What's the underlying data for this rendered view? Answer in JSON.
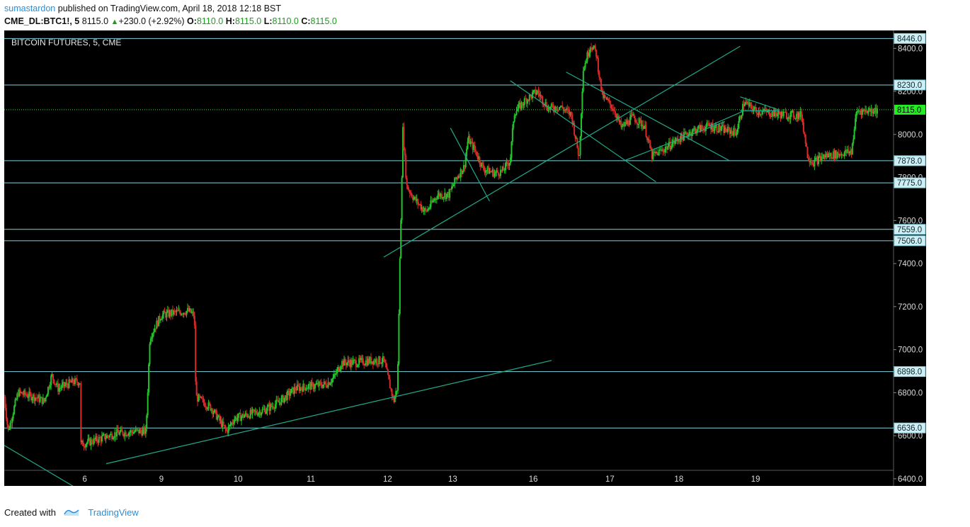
{
  "header": {
    "author": "sumastardon",
    "published": "published on TradingView.com, April 18, 2018 12:18 BST",
    "symbol": "CME_DL:BTC1!, 5",
    "last": "8115.0",
    "change": "+230.0 (+2.92%)",
    "o_label": "O:",
    "o_value": "8110.0",
    "h_label": "H:",
    "h_value": "8115.0",
    "l_label": "L:",
    "l_value": "8110.0",
    "c_label": "C:",
    "c_value": "8115.0"
  },
  "footer": {
    "created_with": "Created with",
    "brand": "TradingView"
  },
  "colors": {
    "background": "#000000",
    "candle_up": "#22c42b",
    "candle_down": "#d92a2a",
    "level_line": "#7fd3e0",
    "trend_line": "#1fa98a",
    "last_price": "#33dd33"
  },
  "chart_data": {
    "type": "candlestick",
    "title": "BITCOIN FUTURES, 5, CME",
    "ylim": [
      6370,
      8480
    ],
    "y_ticks": [
      "6400.0",
      "6600.0",
      "6800.0",
      "7000.0",
      "7200.0",
      "7400.0",
      "7600.0",
      "7800.0",
      "8000.0",
      "8200.0",
      "8400.0"
    ],
    "x_ticks": [
      "6",
      "9",
      "10",
      "11",
      "12",
      "13",
      "16",
      "17",
      "18",
      "19"
    ],
    "horizontal_levels": [
      {
        "value": 8446.0,
        "label": "8446.0"
      },
      {
        "value": 8230.0,
        "label": "8230.0"
      },
      {
        "value": 7878.0,
        "label": "7878.0"
      },
      {
        "value": 7775.0,
        "label": "7775.0"
      },
      {
        "value": 7559.0,
        "label": "7559.0"
      },
      {
        "value": 7506.0,
        "label": "7506.0"
      },
      {
        "value": 6898.0,
        "label": "6898.0"
      },
      {
        "value": 6636.0,
        "label": "6636.0"
      }
    ],
    "last_price": {
      "value": 8115.0,
      "label": "8115.0"
    },
    "price_path": [
      {
        "t": 0.0,
        "p": 6780
      },
      {
        "t": 0.05,
        "p": 6620
      },
      {
        "t": 0.18,
        "p": 6800
      },
      {
        "t": 0.4,
        "p": 6780
      },
      {
        "t": 0.52,
        "p": 6760
      },
      {
        "t": 0.62,
        "p": 6880
      },
      {
        "t": 0.7,
        "p": 6820
      },
      {
        "t": 0.9,
        "p": 6850
      },
      {
        "t": 1.0,
        "p": 6850
      },
      {
        "t": 1.001,
        "p": 6560
      },
      {
        "t": 1.2,
        "p": 6580
      },
      {
        "t": 1.45,
        "p": 6610
      },
      {
        "t": 1.7,
        "p": 6620
      },
      {
        "t": 1.85,
        "p": 6620
      },
      {
        "t": 1.9,
        "p": 7060
      },
      {
        "t": 2.05,
        "p": 7160
      },
      {
        "t": 2.2,
        "p": 7170
      },
      {
        "t": 2.4,
        "p": 7180
      },
      {
        "t": 2.48,
        "p": 7160
      },
      {
        "t": 2.5,
        "p": 6780
      },
      {
        "t": 2.7,
        "p": 6730
      },
      {
        "t": 2.9,
        "p": 6620
      },
      {
        "t": 3.0,
        "p": 6680
      },
      {
        "t": 3.2,
        "p": 6700
      },
      {
        "t": 3.4,
        "p": 6720
      },
      {
        "t": 3.6,
        "p": 6760
      },
      {
        "t": 3.8,
        "p": 6820
      },
      {
        "t": 4.0,
        "p": 6830
      },
      {
        "t": 4.2,
        "p": 6840
      },
      {
        "t": 4.3,
        "p": 6870
      },
      {
        "t": 4.4,
        "p": 6940
      },
      {
        "t": 4.6,
        "p": 6940
      },
      {
        "t": 4.8,
        "p": 6950
      },
      {
        "t": 4.95,
        "p": 6950
      },
      {
        "t": 5.08,
        "p": 6760
      },
      {
        "t": 5.13,
        "p": 6830
      },
      {
        "t": 5.16,
        "p": 7400
      },
      {
        "t": 5.2,
        "p": 8020
      },
      {
        "t": 5.25,
        "p": 7760
      },
      {
        "t": 5.35,
        "p": 7700
      },
      {
        "t": 5.5,
        "p": 7640
      },
      {
        "t": 5.65,
        "p": 7720
      },
      {
        "t": 5.8,
        "p": 7720
      },
      {
        "t": 5.9,
        "p": 7800
      },
      {
        "t": 6.0,
        "p": 7850
      },
      {
        "t": 6.05,
        "p": 7980
      },
      {
        "t": 6.15,
        "p": 7920
      },
      {
        "t": 6.25,
        "p": 7840
      },
      {
        "t": 6.4,
        "p": 7820
      },
      {
        "t": 6.5,
        "p": 7830
      },
      {
        "t": 6.6,
        "p": 7880
      },
      {
        "t": 6.65,
        "p": 8100
      },
      {
        "t": 6.8,
        "p": 8160
      },
      {
        "t": 6.95,
        "p": 8200
      },
      {
        "t": 7.1,
        "p": 8120
      },
      {
        "t": 7.25,
        "p": 8130
      },
      {
        "t": 7.4,
        "p": 8090
      },
      {
        "t": 7.5,
        "p": 7890
      },
      {
        "t": 7.55,
        "p": 8300
      },
      {
        "t": 7.65,
        "p": 8420
      },
      {
        "t": 7.72,
        "p": 8380
      },
      {
        "t": 7.8,
        "p": 8180
      },
      {
        "t": 7.95,
        "p": 8120
      },
      {
        "t": 8.05,
        "p": 8030
      },
      {
        "t": 8.2,
        "p": 8080
      },
      {
        "t": 8.35,
        "p": 8040
      },
      {
        "t": 8.45,
        "p": 7900
      },
      {
        "t": 8.6,
        "p": 7930
      },
      {
        "t": 8.8,
        "p": 7980
      },
      {
        "t": 9.0,
        "p": 8020
      },
      {
        "t": 9.2,
        "p": 8040
      },
      {
        "t": 9.4,
        "p": 8020
      },
      {
        "t": 9.55,
        "p": 8010
      },
      {
        "t": 9.65,
        "p": 8150
      },
      {
        "t": 9.8,
        "p": 8110
      },
      {
        "t": 10.0,
        "p": 8100
      },
      {
        "t": 10.2,
        "p": 8090
      },
      {
        "t": 10.4,
        "p": 8090
      },
      {
        "t": 10.48,
        "p": 7900
      },
      {
        "t": 10.55,
        "p": 7870
      },
      {
        "t": 10.7,
        "p": 7900
      },
      {
        "t": 10.9,
        "p": 7910
      },
      {
        "t": 11.05,
        "p": 7920
      },
      {
        "t": 11.12,
        "p": 8110
      },
      {
        "t": 11.2,
        "p": 8110
      },
      {
        "t": 11.4,
        "p": 8115
      }
    ],
    "trend_lines": [
      {
        "t1": 0.0,
        "p1": 6555,
        "t2": 0.9,
        "p2": 6365
      },
      {
        "t1": 1.33,
        "p1": 6470,
        "t2": 7.14,
        "p2": 6950
      },
      {
        "t1": 4.95,
        "p1": 7430,
        "t2": 9.6,
        "p2": 8410
      },
      {
        "t1": 5.82,
        "p1": 8030,
        "t2": 6.33,
        "p2": 7690
      },
      {
        "t1": 6.6,
        "p1": 8250,
        "t2": 8.5,
        "p2": 7780
      },
      {
        "t1": 7.33,
        "p1": 8290,
        "t2": 9.45,
        "p2": 7880
      },
      {
        "t1": 8.1,
        "p1": 7880,
        "t2": 9.4,
        "p2": 8060
      },
      {
        "t1": 9.2,
        "p1": 8040,
        "t2": 9.65,
        "p2": 8110
      },
      {
        "t1": 9.6,
        "p1": 8175,
        "t2": 10.1,
        "p2": 8115
      },
      {
        "t1": 9.6,
        "p1": 8110,
        "t2": 10.1,
        "p2": 8110
      }
    ]
  }
}
